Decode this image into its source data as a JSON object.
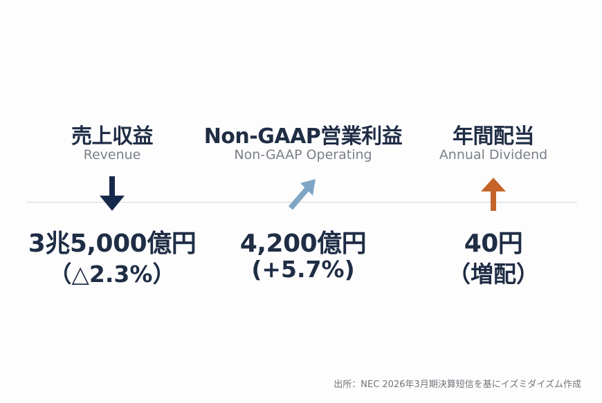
{
  "metrics": [
    {
      "title": "売上収益",
      "subtitle": "Revenue",
      "value": "3兆5,000億円",
      "change": "（△2.3%）",
      "arrow": "down-arrow-icon",
      "arrow_color": "#16294a"
    },
    {
      "title": "Non-GAAP営業利益",
      "subtitle": "Non-GAAP Operating",
      "value": "4,200億円",
      "change": "(+5.7%)",
      "arrow": "up-right-arrow-icon",
      "arrow_color": "#7fa5c4"
    },
    {
      "title": "年間配当",
      "subtitle": "Annual Dividend",
      "value": "40円",
      "change": "（増配）",
      "arrow": "up-arrow-icon",
      "arrow_color": "#c4642a"
    }
  ],
  "source": "出所：NEC 2026年3月期決算短信を基にイズミダイズム作成"
}
